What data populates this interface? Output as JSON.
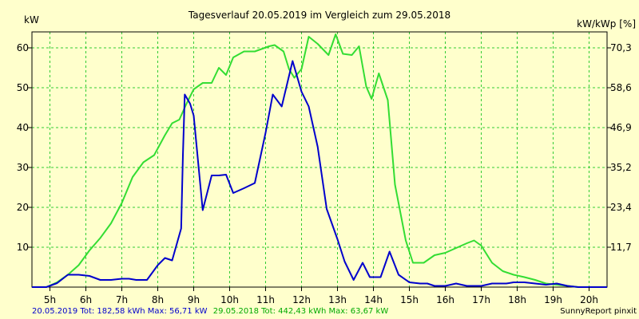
{
  "chart_data": {
    "type": "line",
    "title": "Tagesverlauf 20.05.2019 im Vergleich zum 29.05.2018",
    "ylabel_left": "kW",
    "ylabel_right": "kW/kWp [%]",
    "ylim": [
      0,
      64
    ],
    "xlim": [
      4.5,
      20.5
    ],
    "grid": true,
    "x_ticks": [
      5,
      6,
      7,
      8,
      9,
      10,
      11,
      12,
      13,
      14,
      15,
      16,
      17,
      18,
      19,
      20
    ],
    "x_tick_labels": [
      "5h",
      "6h",
      "7h",
      "8h",
      "9h",
      "10h",
      "11h",
      "12h",
      "13h",
      "14h",
      "15h",
      "16h",
      "17h",
      "18h",
      "19h",
      "20h"
    ],
    "y_ticks_left": [
      10,
      20,
      30,
      40,
      50,
      60
    ],
    "y_tick_labels_left": [
      "10",
      "20",
      "30",
      "40",
      "50",
      "60"
    ],
    "y_ticks_right": [
      11.7,
      23.4,
      35.2,
      46.9,
      58.6,
      70.3
    ],
    "y_tick_labels_right": [
      "11,7",
      "23,4",
      "35,2",
      "46,9",
      "58,6",
      "70,3"
    ],
    "series": [
      {
        "color": "#0000cc",
        "points": [
          [
            4.5,
            0
          ],
          [
            4.9,
            0
          ],
          [
            5.2,
            1
          ],
          [
            5.5,
            3.1
          ],
          [
            5.8,
            3.1
          ],
          [
            6.1,
            2.8
          ],
          [
            6.4,
            1.8
          ],
          [
            6.7,
            1.8
          ],
          [
            7.0,
            2.1
          ],
          [
            7.2,
            2.1
          ],
          [
            7.4,
            1.8
          ],
          [
            7.7,
            1.8
          ],
          [
            8.0,
            5.5
          ],
          [
            8.2,
            7.3
          ],
          [
            8.4,
            6.7
          ],
          [
            8.65,
            14.7
          ],
          [
            8.7,
            33
          ],
          [
            8.75,
            48.3
          ],
          [
            8.9,
            46
          ],
          [
            9.0,
            43
          ],
          [
            9.25,
            19.3
          ],
          [
            9.5,
            28
          ],
          [
            9.7,
            28
          ],
          [
            9.9,
            28.2
          ],
          [
            10.1,
            23.6
          ],
          [
            10.4,
            24.8
          ],
          [
            10.7,
            26.1
          ],
          [
            11.0,
            38.7
          ],
          [
            11.2,
            48.3
          ],
          [
            11.45,
            45.3
          ],
          [
            11.75,
            56.7
          ],
          [
            12.0,
            49
          ],
          [
            12.2,
            45.3
          ],
          [
            12.45,
            35.2
          ],
          [
            12.7,
            19.6
          ],
          [
            13.0,
            12
          ],
          [
            13.2,
            6.4
          ],
          [
            13.45,
            1.8
          ],
          [
            13.7,
            6.1
          ],
          [
            13.9,
            2.5
          ],
          [
            14.2,
            2.5
          ],
          [
            14.45,
            8.9
          ],
          [
            14.7,
            3.1
          ],
          [
            15.0,
            1.2
          ],
          [
            15.3,
            0.9
          ],
          [
            15.5,
            0.9
          ],
          [
            15.7,
            0.3
          ],
          [
            16.0,
            0.3
          ],
          [
            16.3,
            0.9
          ],
          [
            16.6,
            0.3
          ],
          [
            17.0,
            0.3
          ],
          [
            17.3,
            0.9
          ],
          [
            17.7,
            0.9
          ],
          [
            17.9,
            1.2
          ],
          [
            18.2,
            1.2
          ],
          [
            18.5,
            0.9
          ],
          [
            18.8,
            0.6
          ],
          [
            19.1,
            0.9
          ],
          [
            19.4,
            0.3
          ],
          [
            19.7,
            0
          ],
          [
            20.5,
            0
          ]
        ]
      },
      {
        "color": "#33dd33",
        "points": [
          [
            4.5,
            0
          ],
          [
            4.9,
            0
          ],
          [
            5.2,
            1.2
          ],
          [
            5.5,
            3.1
          ],
          [
            5.8,
            5.5
          ],
          [
            6.1,
            9.2
          ],
          [
            6.4,
            12.3
          ],
          [
            6.7,
            16
          ],
          [
            7.0,
            21.1
          ],
          [
            7.3,
            27.6
          ],
          [
            7.6,
            31.3
          ],
          [
            7.9,
            33.1
          ],
          [
            8.2,
            38.1
          ],
          [
            8.4,
            41.1
          ],
          [
            8.6,
            42
          ],
          [
            8.8,
            46
          ],
          [
            9.0,
            49.6
          ],
          [
            9.25,
            51.2
          ],
          [
            9.5,
            51.2
          ],
          [
            9.7,
            55
          ],
          [
            9.9,
            53.2
          ],
          [
            10.1,
            57.6
          ],
          [
            10.4,
            59.1
          ],
          [
            10.7,
            59.1
          ],
          [
            11.1,
            60.4
          ],
          [
            11.25,
            60.7
          ],
          [
            11.5,
            59.1
          ],
          [
            11.65,
            54.7
          ],
          [
            11.8,
            52.5
          ],
          [
            12.0,
            54.7
          ],
          [
            12.2,
            62.8
          ],
          [
            12.45,
            61
          ],
          [
            12.75,
            58.2
          ],
          [
            12.95,
            63.4
          ],
          [
            13.15,
            58.5
          ],
          [
            13.4,
            58.2
          ],
          [
            13.6,
            60.4
          ],
          [
            13.8,
            50.3
          ],
          [
            13.95,
            47.2
          ],
          [
            14.15,
            53.6
          ],
          [
            14.4,
            46.9
          ],
          [
            14.6,
            25.7
          ],
          [
            14.9,
            11.7
          ],
          [
            15.1,
            6.1
          ],
          [
            15.4,
            6.1
          ],
          [
            15.7,
            8
          ],
          [
            16.0,
            8.6
          ],
          [
            16.3,
            9.8
          ],
          [
            16.6,
            11
          ],
          [
            16.8,
            11.7
          ],
          [
            17.0,
            10.4
          ],
          [
            17.3,
            6.1
          ],
          [
            17.6,
            4
          ],
          [
            17.9,
            3.1
          ],
          [
            18.2,
            2.5
          ],
          [
            18.5,
            1.8
          ],
          [
            18.8,
            0.9
          ],
          [
            19.1,
            0.6
          ],
          [
            19.4,
            0.3
          ],
          [
            19.7,
            0
          ],
          [
            20.5,
            0
          ]
        ]
      }
    ]
  },
  "footer": {
    "series_blue": "20.05.2019 Tot: 182,58 kWh Max: 56,71 kW",
    "series_green": "29.05.2018 Tot: 442,43 kWh Max: 63,67 kW",
    "credit": "SunnyReport pinxit"
  },
  "colors": {
    "background": "#ffffcc",
    "grid": "#33cc33",
    "series_blue": "#0000cc",
    "series_green": "#33dd33"
  }
}
